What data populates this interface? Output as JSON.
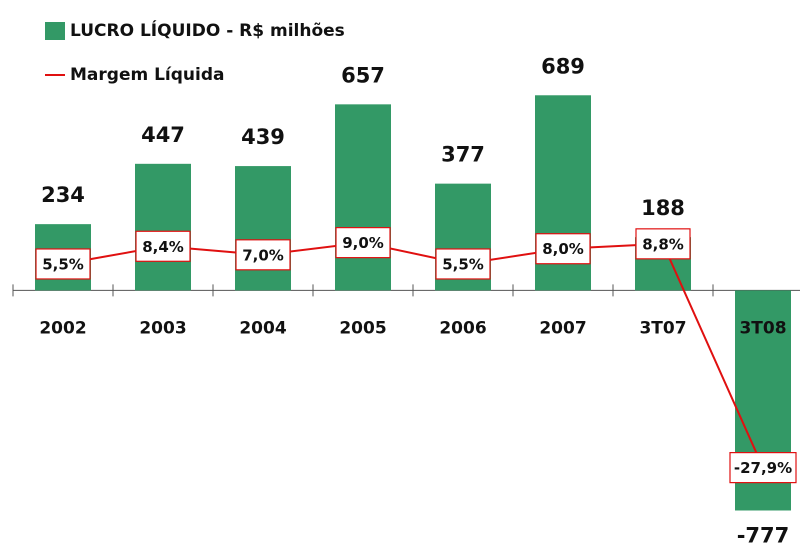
{
  "chart_data": {
    "type": "bar",
    "categories": [
      "2002",
      "2003",
      "2004",
      "2005",
      "2006",
      "2007",
      "3T07",
      "3T08"
    ],
    "series": [
      {
        "name": "LUCRO LÍQUIDO - R$ milhões",
        "type": "bar",
        "color": "#339966",
        "values": [
          234,
          447,
          439,
          657,
          377,
          689,
          188,
          -777
        ]
      },
      {
        "name": "Margem Líquida",
        "type": "line",
        "axis": "y2",
        "color": "#e01010",
        "values": [
          5.5,
          8.4,
          7.0,
          9.0,
          5.5,
          8.0,
          8.8,
          -27.9
        ],
        "value_labels": [
          "5,5%",
          "8,4%",
          "7,0%",
          "9,0%",
          "5,5%",
          "8,0%",
          "8,8%",
          "-27,9%"
        ]
      }
    ],
    "ylim": [
      -800,
      750
    ],
    "y2lim": [
      -36,
      36
    ],
    "legend": "top-left"
  }
}
